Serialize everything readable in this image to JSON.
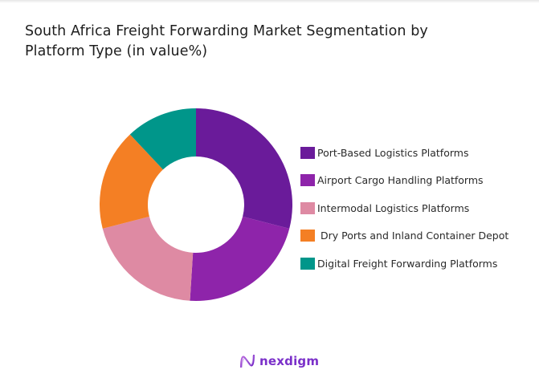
{
  "title": "South Africa Freight Forwarding Market Segmentation by Platform Type (in value%)",
  "title_lines": [
    "South Africa Freight Forwarding Market Segmentation by",
    "Platform Type (in value%)"
  ],
  "logo": {
    "text": "nexdigm",
    "icon": "nexdigm-wave-logo-icon"
  },
  "chart_data": {
    "type": "pie",
    "subtype": "donut",
    "title": "South Africa Freight Forwarding Market Segmentation by Platform Type (in value%)",
    "categories": [
      "Port-Based Logistics Platforms",
      "Airport Cargo Handling Platforms",
      "Intermodal Logistics Platforms",
      "Dry Ports and Inland Container Depot",
      "Digital Freight Forwarding Platforms"
    ],
    "values": [
      29,
      22,
      20,
      17,
      12
    ],
    "colors": [
      "#6a1b9a",
      "#8e24aa",
      "#de8aa3",
      "#f47f24",
      "#00968a"
    ],
    "start_angle": "12 o'clock, clockwise",
    "legend_position": "right",
    "data_labels": false
  },
  "legend": {
    "items": [
      {
        "label": "Port-Based Logistics Platforms",
        "color": "#6a1b9a"
      },
      {
        "label": "Airport Cargo Handling Platforms",
        "color": "#8e24aa"
      },
      {
        "label": "Intermodal Logistics Platforms",
        "color": "#de8aa3"
      },
      {
        "label": " Dry Ports and Inland Container Depot",
        "color": "#f47f24"
      },
      {
        "label": "Digital Freight Forwarding Platforms",
        "color": "#00968a"
      }
    ]
  }
}
